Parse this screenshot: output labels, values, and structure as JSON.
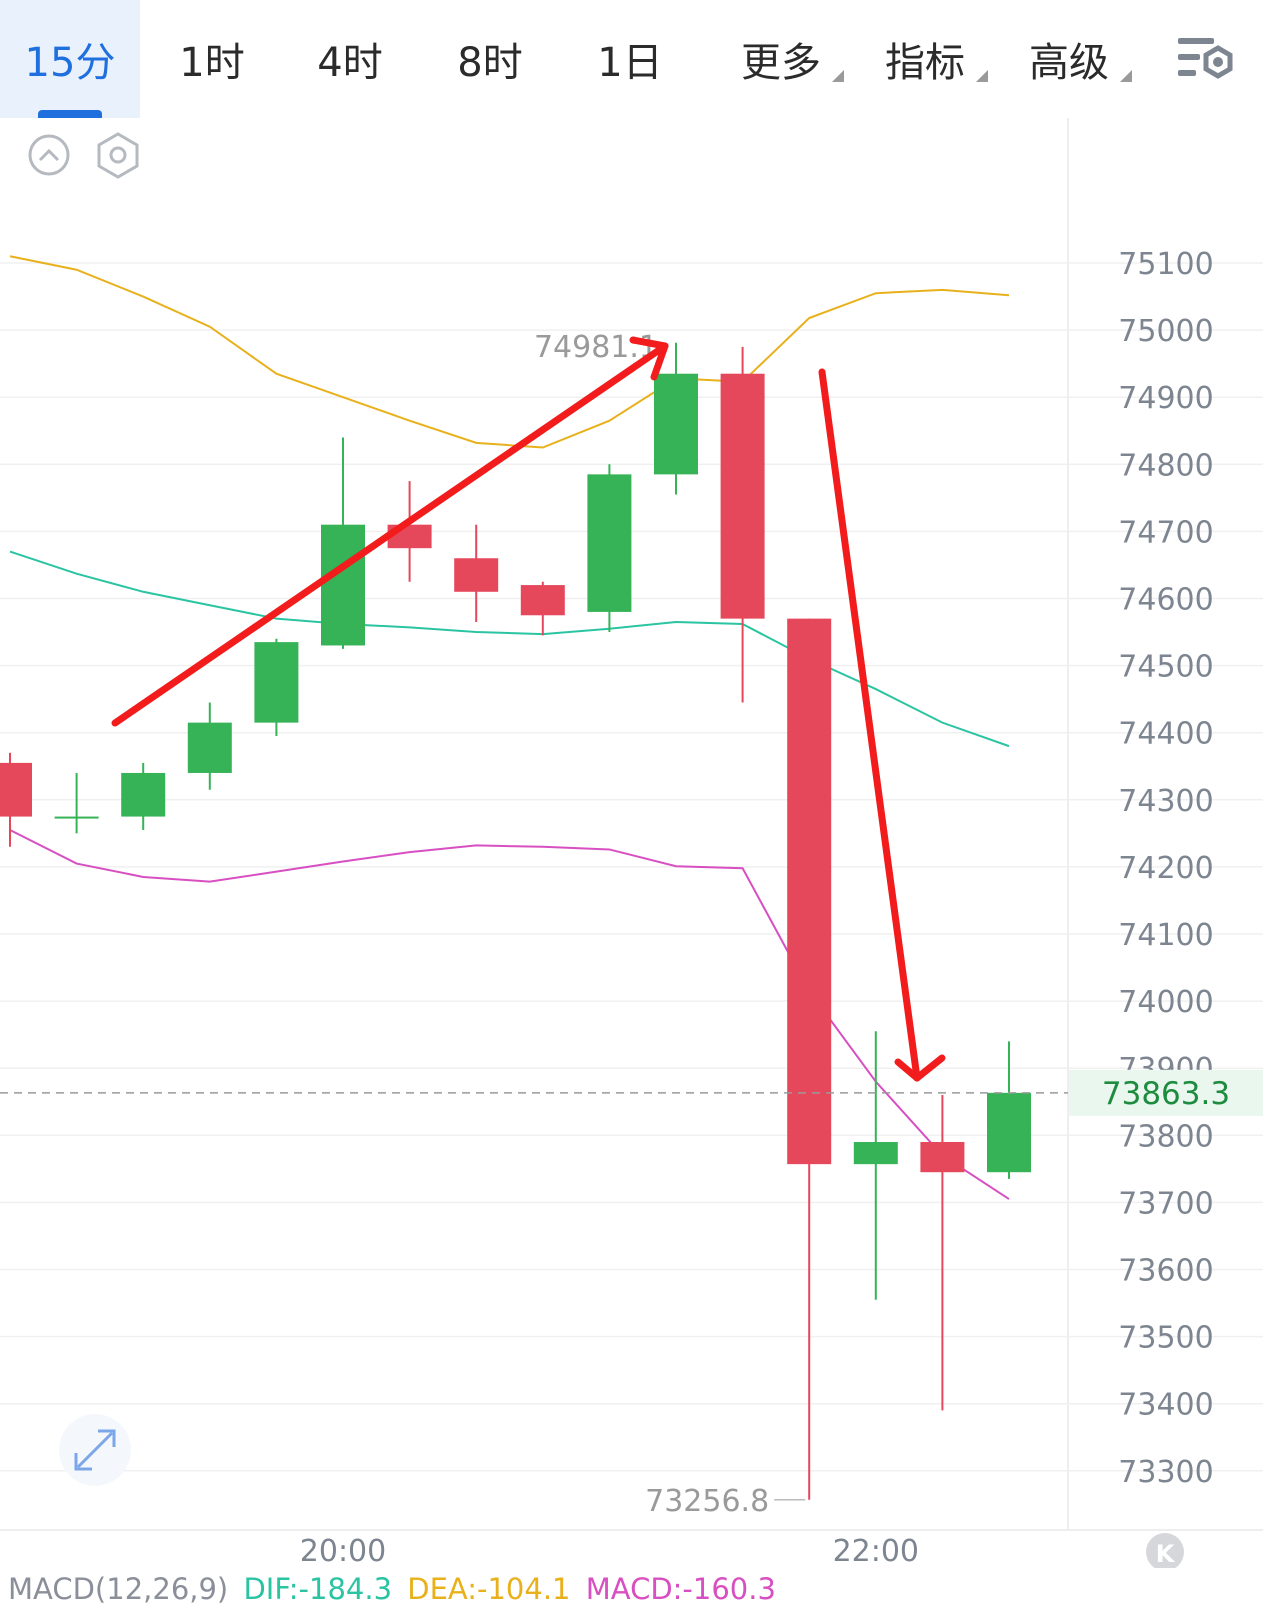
{
  "tabs": [
    {
      "label": "15分",
      "active": true,
      "dropdown": false
    },
    {
      "label": "1时",
      "active": false,
      "dropdown": false
    },
    {
      "label": "4时",
      "active": false,
      "dropdown": false
    },
    {
      "label": "8时",
      "active": false,
      "dropdown": false
    },
    {
      "label": "1日",
      "active": false,
      "dropdown": false
    },
    {
      "label": "更多",
      "active": false,
      "dropdown": true
    },
    {
      "label": "指标",
      "active": false,
      "dropdown": true
    },
    {
      "label": "高级",
      "active": false,
      "dropdown": true
    }
  ],
  "icons": {
    "settings": "settings-layers-icon",
    "collapse": "chevron-up-circle-icon",
    "chart_settings": "hexagon-gear-icon",
    "expand": "expand-arrows-icon",
    "k": "k-badge-icon"
  },
  "colors": {
    "up": "#36b357",
    "down": "#e5485b",
    "upper_band": "#e8b11c",
    "middle_band": "#2bc4a3",
    "lower_band": "#d84fc2",
    "annotation_arrow": "#f21c1c",
    "current_price": "#1e8c3f",
    "dif": "#2bc4a3",
    "dea": "#e8b11c",
    "macd": "#d84fc2",
    "active_tab": "#1f6fde"
  },
  "chart_data": {
    "type": "candlestick",
    "interval": "15分",
    "y_ticks": [
      75100,
      75000,
      74900,
      74800,
      74700,
      74600,
      74500,
      74400,
      74300,
      74200,
      74100,
      74000,
      73900,
      73800,
      73700,
      73600,
      73500,
      73400,
      73300
    ],
    "x_ticks": [
      {
        "index": 5,
        "label": "20:00"
      },
      {
        "index": 13,
        "label": "22:00"
      }
    ],
    "candles": [
      {
        "open": 74355,
        "high": 74370,
        "low": 74230,
        "close": 74275
      },
      {
        "open": 74275,
        "high": 74340,
        "low": 74250,
        "close": 74275
      },
      {
        "open": 74275,
        "high": 74355,
        "low": 74255,
        "close": 74340
      },
      {
        "open": 74340,
        "high": 74445,
        "low": 74315,
        "close": 74415
      },
      {
        "open": 74415,
        "high": 74540,
        "low": 74395,
        "close": 74535
      },
      {
        "open": 74530,
        "high": 74840,
        "low": 74525,
        "close": 74710
      },
      {
        "open": 74710,
        "high": 74775,
        "low": 74625,
        "close": 74675
      },
      {
        "open": 74660,
        "high": 74710,
        "low": 74565,
        "close": 74610
      },
      {
        "open": 74620,
        "high": 74625,
        "low": 74545,
        "close": 74575
      },
      {
        "open": 74580,
        "high": 74800,
        "low": 74550,
        "close": 74785
      },
      {
        "open": 74785,
        "high": 74981.1,
        "low": 74755,
        "close": 74935
      },
      {
        "open": 74935,
        "high": 74975,
        "low": 74445,
        "close": 74570
      },
      {
        "open": 74570,
        "high": 74570,
        "low": 73256.8,
        "close": 73757
      },
      {
        "open": 73757,
        "high": 73955,
        "low": 73555,
        "close": 73790
      },
      {
        "open": 73790,
        "high": 73860,
        "low": 73390,
        "close": 73745
      },
      {
        "open": 73745,
        "high": 73940,
        "low": 73735,
        "close": 73863.3
      }
    ],
    "bollinger": {
      "upper": [
        75110,
        75090,
        75050,
        75005,
        74935,
        74900,
        74865,
        74832,
        74825,
        74865,
        74928,
        74923,
        75018,
        75055,
        75060,
        75052
      ],
      "middle": [
        74670,
        74637,
        74610,
        74590,
        74570,
        74562,
        74557,
        74550,
        74547,
        74555,
        74565,
        74562,
        74510,
        74465,
        74415,
        74380
      ],
      "lower": [
        74255,
        74205,
        74185,
        74178,
        74193,
        74208,
        74222,
        74232,
        74230,
        74226,
        74201,
        74198,
        74015,
        73880,
        73770,
        73705
      ]
    },
    "current_price": 73863.3,
    "high_label": "74981.1",
    "low_label": "73256.8",
    "current_label": "73863.3",
    "indicator": {
      "name": "MACD(12,26,9)",
      "dif": "DIF:-184.3",
      "dea": "DEA:-104.1",
      "macd": "MACD:-160.3"
    }
  }
}
